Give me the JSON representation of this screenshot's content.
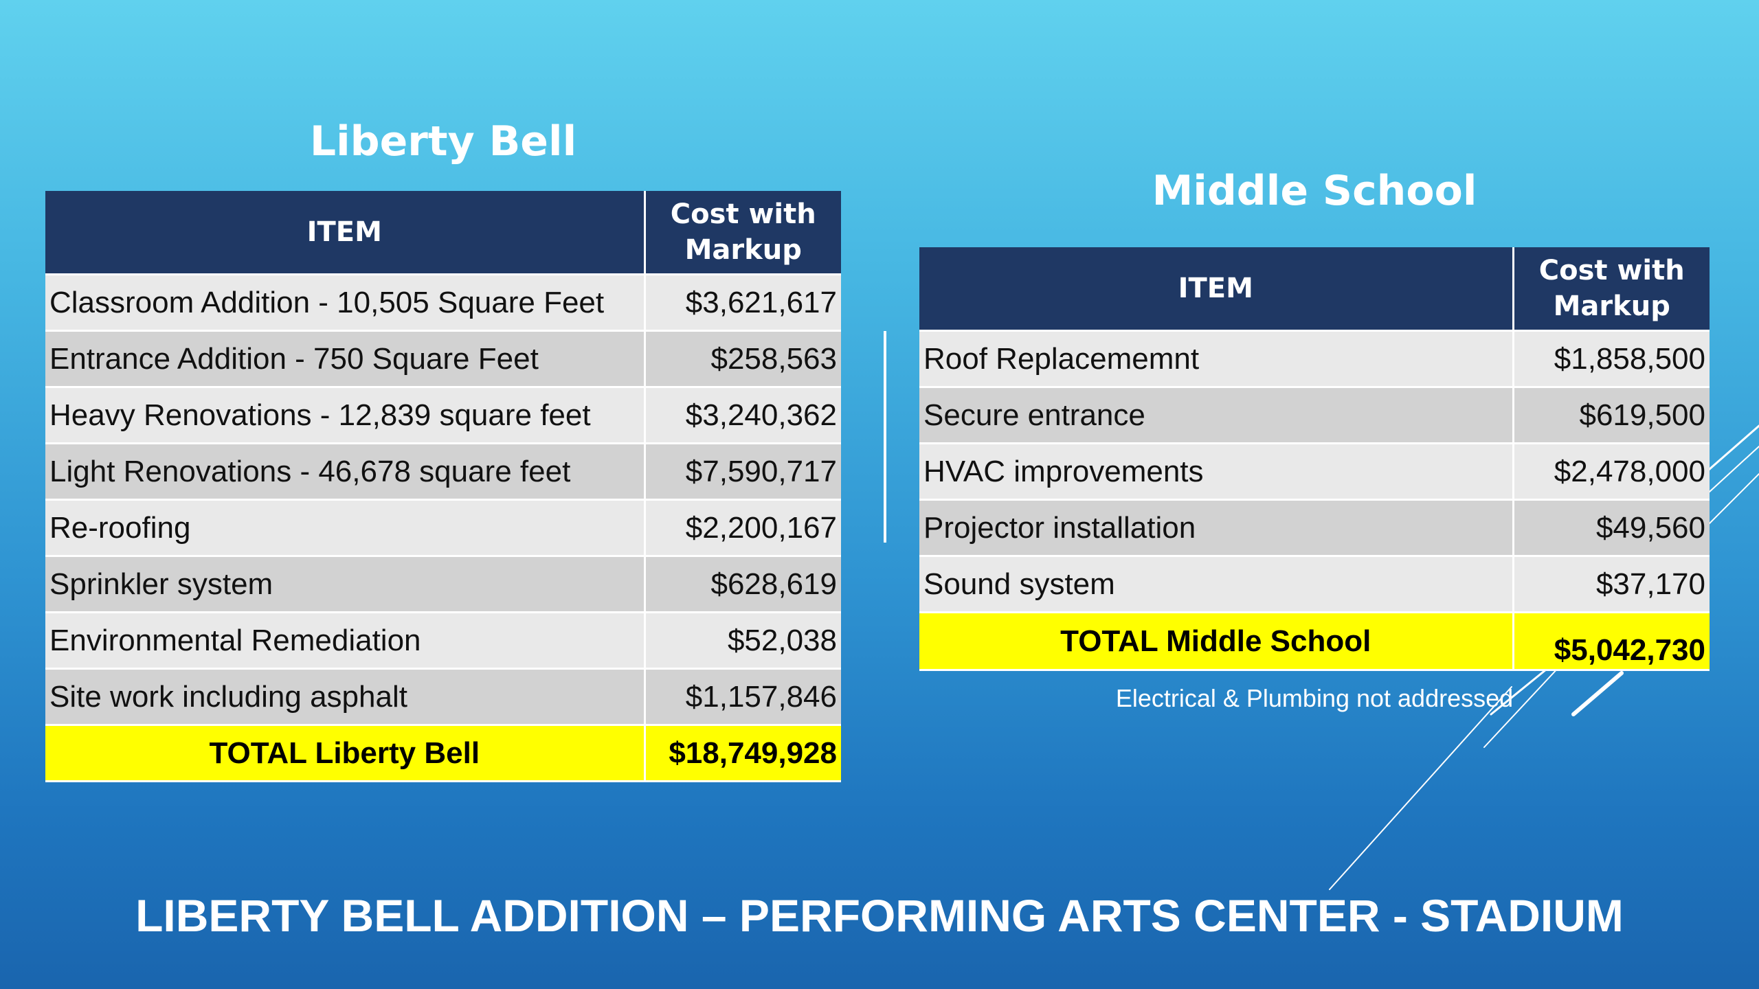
{
  "slide_title": "LIBERTY BELL ADDITION – PERFORMING ARTS CENTER - STADIUM",
  "liberty_bell": {
    "title": "Liberty Bell",
    "headers": {
      "item": "ITEM",
      "cost": "Cost with Markup"
    },
    "rows": [
      {
        "item": "Classroom Addition - 10,505 Square Feet",
        "cost": "$3,621,617"
      },
      {
        "item": "Entrance Addition - 750 Square Feet",
        "cost": "$258,563"
      },
      {
        "item": "Heavy Renovations - 12,839 square feet",
        "cost": "$3,240,362"
      },
      {
        "item": "Light Renovations - 46,678 square feet",
        "cost": "$7,590,717"
      },
      {
        "item": "Re-roofing",
        "cost": "$2,200,167"
      },
      {
        "item": "Sprinkler system",
        "cost": "$628,619"
      },
      {
        "item": "Environmental Remediation",
        "cost": "$52,038"
      },
      {
        "item": "Site work including asphalt",
        "cost": "$1,157,846"
      }
    ],
    "total": {
      "label": "TOTAL Liberty Bell",
      "value": "$18,749,928"
    }
  },
  "middle_school": {
    "title": "Middle School",
    "headers": {
      "item": "ITEM",
      "cost": "Cost with Markup"
    },
    "rows": [
      {
        "item": "Roof Replacememnt",
        "cost": "$1,858,500"
      },
      {
        "item": "Secure entrance",
        "cost": "$619,500"
      },
      {
        "item": "HVAC improvements",
        "cost": "$2,478,000"
      },
      {
        "item": "Projector installation",
        "cost": "$49,560"
      },
      {
        "item": "Sound system",
        "cost": "$37,170"
      }
    ],
    "total": {
      "label": "TOTAL Middle School",
      "value": "$5,042,730"
    },
    "note": "Electrical & Plumbing not addressed"
  },
  "colors": {
    "header_bg": "#1f3864",
    "total_bg": "#ffff00",
    "row_light": "#e9e9e9",
    "row_dark": "#d2d2d2"
  }
}
